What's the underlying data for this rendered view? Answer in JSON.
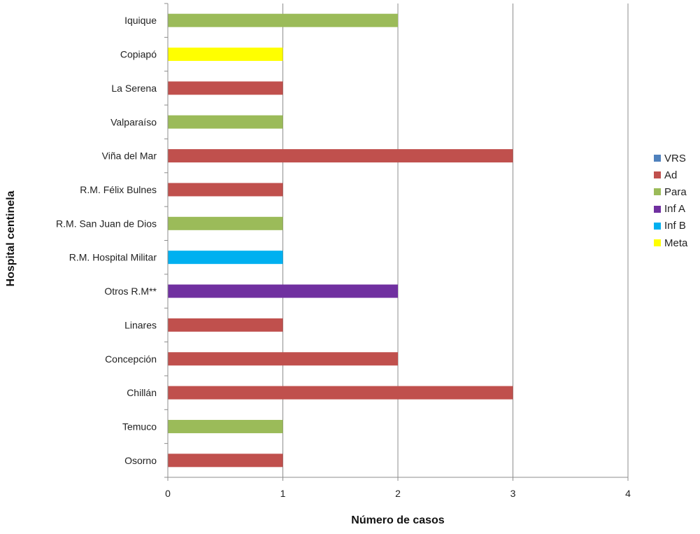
{
  "chart_data": {
    "type": "bar",
    "orientation": "horizontal",
    "title": "",
    "xlabel": "Número de casos",
    "ylabel": "Hospital centinela",
    "xlim": [
      0,
      4
    ],
    "xticks": [
      "0",
      "1",
      "2",
      "3",
      "4"
    ],
    "grid": "vertical",
    "legend_position": "right",
    "categories": [
      "Iquique",
      "Copiapó",
      "La Serena",
      "Valparaíso",
      "Viña del Mar",
      "R.M. Félix Bulnes",
      "R.M. San Juan de Dios",
      "R.M. Hospital Militar",
      "Otros R.M**",
      "Linares",
      "Concepción",
      "Chillán",
      "Temuco",
      "Osorno"
    ],
    "series": [
      {
        "name": "VRS",
        "color": "#4f81bd",
        "values": [
          0,
          0,
          0,
          0,
          0,
          0,
          0,
          0,
          0,
          0,
          0,
          0,
          0,
          0
        ]
      },
      {
        "name": "Ad",
        "color": "#c0504d",
        "values": [
          0,
          0,
          1,
          0,
          3,
          1,
          0,
          0,
          0,
          1,
          2,
          3,
          0,
          1
        ]
      },
      {
        "name": "Para",
        "color": "#9bbb59",
        "values": [
          2,
          0,
          0,
          1,
          0,
          0,
          1,
          0,
          0,
          0,
          0,
          0,
          1,
          0
        ]
      },
      {
        "name": "Inf A",
        "color": "#7030a0",
        "values": [
          0,
          0,
          0,
          0,
          0,
          0,
          0,
          0,
          2,
          0,
          0,
          0,
          0,
          0
        ]
      },
      {
        "name": "Inf B",
        "color": "#00b0f0",
        "values": [
          0,
          0,
          0,
          0,
          0,
          0,
          0,
          1,
          0,
          0,
          0,
          0,
          0,
          0
        ]
      },
      {
        "name": "Meta",
        "color": "#ffff00",
        "values": [
          0,
          1,
          0,
          0,
          0,
          0,
          0,
          0,
          0,
          0,
          0,
          0,
          0,
          0
        ]
      }
    ]
  }
}
